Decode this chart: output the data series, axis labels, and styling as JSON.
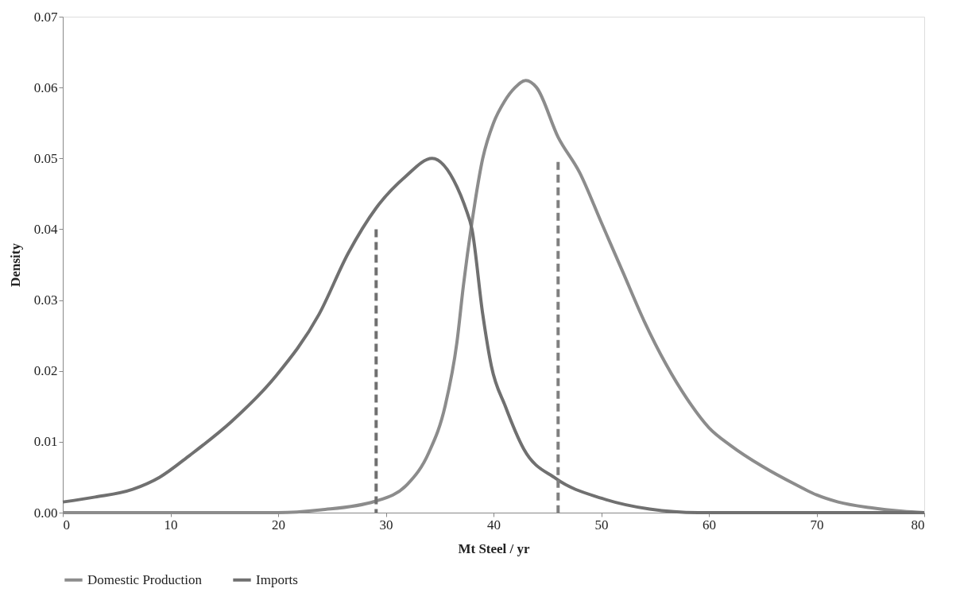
{
  "chart_data": {
    "type": "line",
    "xlabel": "Mt Steel / yr",
    "ylabel": "Density",
    "xlim": [
      0,
      80
    ],
    "xticks": [
      0,
      10,
      20,
      30,
      40,
      50,
      60,
      70,
      80
    ],
    "ylim": [
      0,
      0.07
    ],
    "yticks": [
      {
        "value": 0,
        "label": "0.00"
      },
      {
        "value": 0.01,
        "label": "0.01"
      },
      {
        "value": 0.02,
        "label": "0.02"
      },
      {
        "value": 0.03,
        "label": "0.03"
      },
      {
        "value": 0.04,
        "label": "0.04"
      },
      {
        "value": 0.05,
        "label": "0.05"
      },
      {
        "value": 0.06,
        "label": "0.06"
      },
      {
        "value": 0.07,
        "label": "0.07"
      }
    ],
    "grid": false,
    "legend": "bottom",
    "marker": "none",
    "series": [
      {
        "name": "Domestic Production",
        "color": "#8c8c8c",
        "x": [
          0,
          10,
          20,
          24,
          29,
          32,
          34,
          35.5,
          36.6,
          37.2,
          38,
          39,
          40,
          41,
          42,
          43,
          44,
          46,
          48,
          50,
          52,
          54,
          56,
          58,
          60,
          62,
          65,
          68,
          70,
          72,
          75,
          78,
          80
        ],
        "values": [
          0,
          0,
          0,
          0.0004,
          0.0016,
          0.004,
          0.0085,
          0.015,
          0.024,
          0.032,
          0.041,
          0.05,
          0.055,
          0.058,
          0.06,
          0.061,
          0.06,
          0.053,
          0.048,
          0.041,
          0.034,
          0.027,
          0.021,
          0.016,
          0.012,
          0.0095,
          0.0065,
          0.004,
          0.0025,
          0.0015,
          0.0007,
          0.0002,
          0
        ]
      },
      {
        "name": "Imports",
        "color": "#707070",
        "x": [
          0,
          3,
          6.5,
          9,
          11.8,
          15.7,
          19.8,
          23.8,
          26.5,
          29.1,
          31.8,
          34.3,
          36.6,
          37.4,
          38,
          39,
          39.8,
          41.1,
          42.8,
          45.8,
          50.1,
          54.5,
          59,
          70,
          80
        ],
        "values": [
          0.0015,
          0.0022,
          0.0033,
          0.005,
          0.0081,
          0.0129,
          0.0193,
          0.028,
          0.0366,
          0.043,
          0.0474,
          0.05,
          0.046,
          0.043,
          0.04,
          0.028,
          0.0207,
          0.015,
          0.009,
          0.0048,
          0.002,
          0.0005,
          0,
          0,
          0
        ]
      },
      {
        "color": "#707070",
        "line_style": "dashed",
        "x": [
          29.1,
          29.1
        ],
        "values": [
          0,
          0.04
        ]
      },
      {
        "color": "#808080",
        "line_style": "dashed",
        "x": [
          46,
          46
        ],
        "values": [
          0,
          0.0495
        ]
      }
    ]
  }
}
